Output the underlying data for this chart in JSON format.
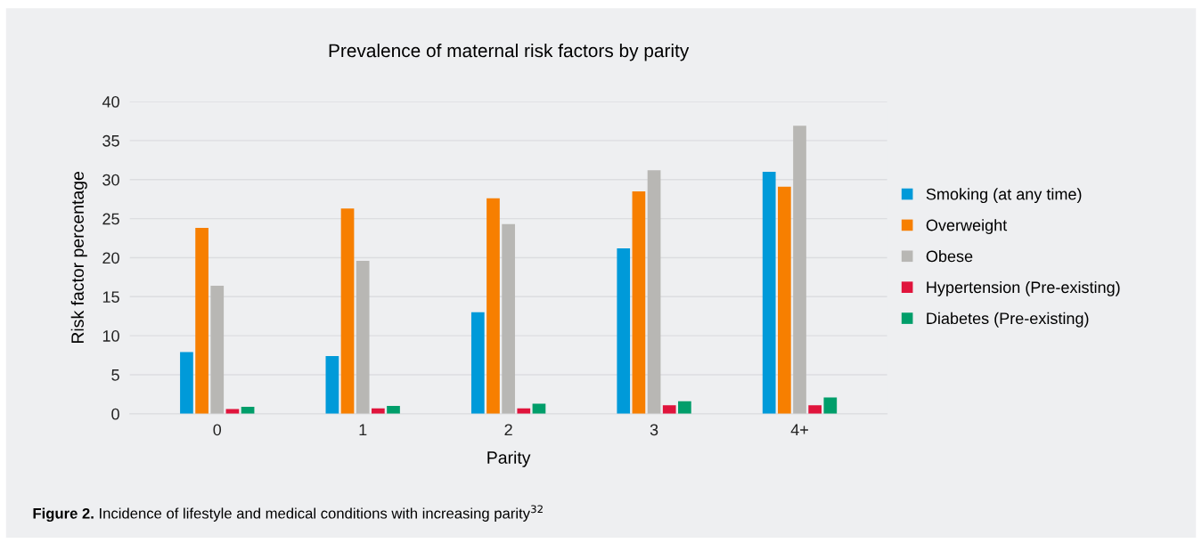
{
  "chart_data": {
    "type": "bar",
    "title": "Prevalence of maternal risk factors by parity",
    "xlabel": "Parity",
    "ylabel": "Risk factor percentage",
    "categories": [
      "0",
      "1",
      "2",
      "3",
      "4+"
    ],
    "series": [
      {
        "name": "Smoking (at any time)",
        "color": "#009ad9",
        "values": [
          7.9,
          7.4,
          13.0,
          21.2,
          31.0
        ]
      },
      {
        "name": "Overweight",
        "color": "#f77f00",
        "values": [
          23.8,
          26.3,
          27.6,
          28.5,
          29.1
        ]
      },
      {
        "name": "Obese",
        "color": "#b8b7b4",
        "values": [
          16.4,
          19.6,
          24.3,
          31.2,
          36.9
        ]
      },
      {
        "name": "Hypertension (Pre-existing)",
        "color": "#e0143c",
        "values": [
          0.6,
          0.7,
          0.7,
          1.1,
          1.1
        ]
      },
      {
        "name": "Diabetes (Pre-existing)",
        "color": "#009e6a",
        "values": [
          0.9,
          1.0,
          1.3,
          1.6,
          2.1
        ]
      }
    ],
    "ylim": [
      0,
      40
    ],
    "yticks": [
      0,
      5,
      10,
      15,
      20,
      25,
      30,
      35,
      40
    ],
    "grid": "y",
    "legend": "right",
    "annotations": [
      "Figure 2.",
      "Incidence of lifestyle and medical conditions with increasing parity$^{32}$"
    ]
  }
}
